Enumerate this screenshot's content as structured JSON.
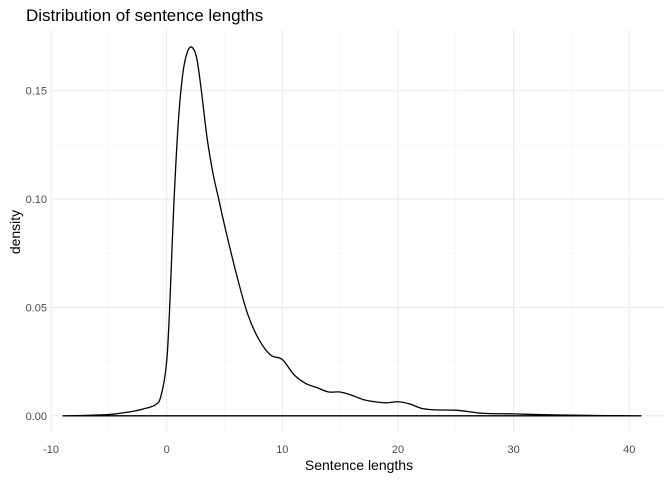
{
  "chart_data": {
    "type": "line",
    "title": "Distribution of sentence lengths",
    "xlabel": "Sentence lengths",
    "ylabel": "density",
    "xlim": [
      -10,
      43
    ],
    "ylim": [
      -0.007,
      0.178
    ],
    "x_ticks": [
      -10,
      0,
      10,
      20,
      30,
      40
    ],
    "x_tick_labels": [
      "-10",
      "0",
      "10",
      "20",
      "30",
      "40"
    ],
    "y_ticks": [
      0.0,
      0.05,
      0.1,
      0.15
    ],
    "y_tick_labels": [
      "0.00",
      "0.05",
      "0.10",
      "0.15"
    ],
    "grid": true,
    "legend": "none",
    "line_color": "#000000",
    "series": [
      {
        "closed_baseline": true,
        "x": [
          -9,
          -7,
          -5,
          -4,
          -3,
          -2,
          -1,
          -0.5,
          0,
          0.3,
          0.6,
          1.0,
          1.4,
          1.8,
          2.2,
          2.6,
          3.0,
          3.5,
          4.0,
          4.5,
          5.0,
          6.0,
          7.0,
          8.0,
          9.0,
          10.0,
          11.0,
          12.0,
          13.0,
          14.0,
          15.0,
          16.0,
          17.0,
          18.0,
          19.0,
          20.0,
          21.0,
          22.0,
          23.0,
          25.0,
          26.0,
          27.0,
          28.0,
          30.0,
          32.0,
          35.0,
          38.0,
          41.0
        ],
        "y": [
          0.0,
          0.0002,
          0.0006,
          0.0012,
          0.002,
          0.0032,
          0.005,
          0.009,
          0.025,
          0.055,
          0.095,
          0.135,
          0.158,
          0.168,
          0.17,
          0.165,
          0.15,
          0.128,
          0.112,
          0.1,
          0.088,
          0.066,
          0.047,
          0.035,
          0.028,
          0.026,
          0.019,
          0.015,
          0.013,
          0.011,
          0.011,
          0.0095,
          0.0075,
          0.0065,
          0.006,
          0.0065,
          0.0055,
          0.0035,
          0.0028,
          0.0026,
          0.002,
          0.0013,
          0.001,
          0.0009,
          0.0006,
          0.0003,
          0.0001,
          0.0
        ]
      }
    ]
  }
}
